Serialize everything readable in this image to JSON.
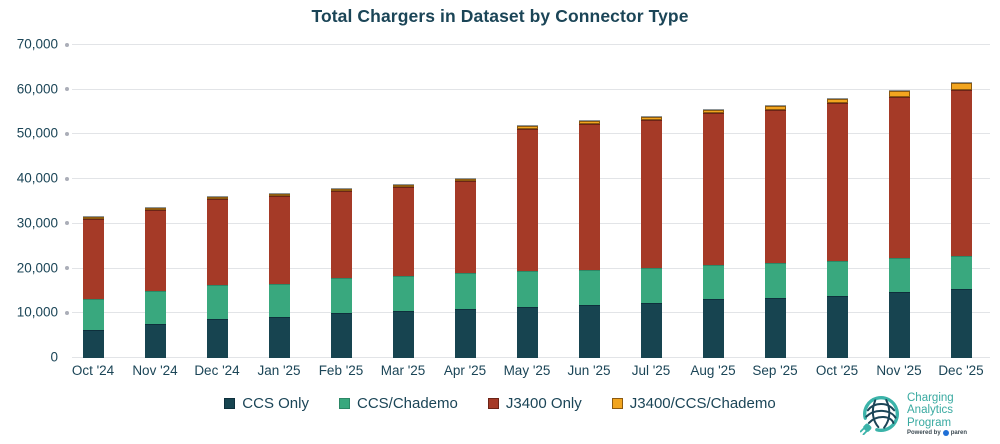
{
  "title": "Total Chargers in Dataset by Connector Type",
  "chart_data": {
    "type": "bar",
    "stacked": true,
    "title": "Total Chargers in Dataset by Connector Type",
    "categories": [
      "Oct '24",
      "Nov '24",
      "Dec '24",
      "Jan '25",
      "Feb '25",
      "Mar '25",
      "Apr '25",
      "May '25",
      "Jun '25",
      "Jul '25",
      "Aug '25",
      "Sep '25",
      "Oct '25",
      "Nov '25",
      "Dec '25"
    ],
    "series": [
      {
        "name": "CCS Only",
        "color": "#174450",
        "edge": "#0e2f3c",
        "values": [
          6300,
          7700,
          8700,
          9200,
          10000,
          10500,
          11000,
          11500,
          11900,
          12400,
          13100,
          13500,
          13900,
          14700,
          15500
        ]
      },
      {
        "name": "CCS/Chademo",
        "color": "#39a87e",
        "edge": "#2c8766",
        "values": [
          6900,
          7300,
          7600,
          7400,
          7800,
          7800,
          8000,
          8000,
          7800,
          7700,
          7800,
          7800,
          7900,
          7700,
          7400
        ]
      },
      {
        "name": "J3400 Only",
        "color": "#a53a27",
        "edge": "#6b2417",
        "values": [
          17800,
          18000,
          19200,
          19600,
          19500,
          20000,
          20600,
          31800,
          32700,
          33200,
          34000,
          34100,
          35200,
          36000,
          37000
        ]
      },
      {
        "name": "J3400/CCS/Chademo",
        "color": "#f2a51f",
        "edge": "#8c5a10",
        "values": [
          300,
          500,
          400,
          300,
          400,
          400,
          400,
          700,
          600,
          700,
          600,
          900,
          900,
          1300,
          1600
        ]
      }
    ],
    "ylim": [
      0,
      70000
    ],
    "ytick_step": 10000,
    "ytick_labels": [
      "0",
      "10,000",
      "20,000",
      "30,000",
      "40,000",
      "50,000",
      "60,000",
      "70,000"
    ],
    "grid": "horizontal",
    "legend_position": "bottom",
    "colors_note": {
      "grid": "#e2e4e7",
      "tick_dot": "#abaeb8",
      "text": "#1b4557"
    }
  },
  "branding": {
    "name_lines": [
      "Charging",
      "Analytics",
      "Program"
    ],
    "powered_by": "Powered by",
    "brand": "paren",
    "accent": "#3bb3a9"
  }
}
